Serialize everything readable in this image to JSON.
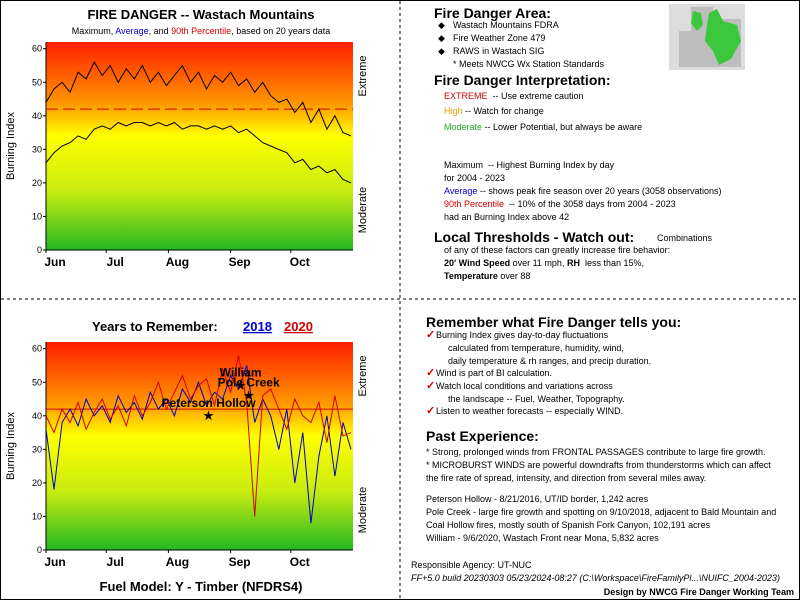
{
  "chart_data": [
    {
      "type": "line",
      "title": "FIRE DANGER -- Wastach Mountains",
      "subtitle": [
        {
          "text": "Maximum, ",
          "color": "#000000"
        },
        {
          "text": "Average",
          "color": "#0000cc"
        },
        {
          "text": ", and ",
          "color": "#000000"
        },
        {
          "text": "90th Percentile",
          "color": "#d00000"
        },
        {
          "text": ", based on 20 years data",
          "color": "#000000"
        }
      ],
      "ylabel": "Burning Index",
      "zone_labels": [
        "Extreme",
        "Moderate"
      ],
      "x": [
        0,
        4,
        8,
        12,
        16,
        20,
        24,
        28,
        32,
        36,
        40,
        44,
        48,
        52,
        56,
        60,
        64,
        68,
        72,
        76,
        80,
        84,
        88,
        92,
        96,
        100,
        104,
        108,
        112,
        116,
        120,
        124,
        128,
        132,
        136,
        140,
        144,
        148,
        152
      ],
      "series": [
        {
          "color": "#000000",
          "values": [
            44,
            48,
            50,
            47,
            53,
            51,
            56,
            52,
            55,
            50,
            54,
            51,
            55,
            50,
            53,
            49,
            52,
            55,
            50,
            53,
            48,
            52,
            50,
            53,
            49,
            51,
            47,
            50,
            46,
            44,
            45,
            41,
            44,
            38,
            42,
            36,
            40,
            35,
            34
          ]
        },
        {
          "color": "#000000",
          "values": [
            26,
            29,
            31,
            32,
            34,
            33,
            36,
            37,
            36,
            38,
            37,
            38,
            38,
            37,
            38,
            37,
            38,
            36,
            37,
            37,
            36,
            37,
            36,
            37,
            35,
            36,
            34,
            32,
            31,
            30,
            29,
            26,
            27,
            24,
            25,
            23,
            24,
            21,
            20
          ]
        }
      ],
      "reference": {
        "value": 42,
        "color": "#d00000",
        "dashed": true
      },
      "xlim": [
        0,
        153
      ],
      "xticks": [
        {
          "value": 0,
          "label": "Jun"
        },
        {
          "value": 30,
          "label": "Jul"
        },
        {
          "value": 61,
          "label": "Aug"
        },
        {
          "value": 92,
          "label": "Sep"
        },
        {
          "value": 122,
          "label": "Oct"
        }
      ],
      "ylim": [
        0,
        62
      ],
      "yticks": [
        0,
        10,
        20,
        30,
        40,
        50,
        60
      ]
    },
    {
      "type": "line",
      "title": "Years to Remember:",
      "ylabel": "Burning Index",
      "zone_labels": [
        "Extreme",
        "Moderate"
      ],
      "footer": "Fuel Model: Y - Timber (NFDRS4)",
      "x": [
        0,
        4,
        8,
        12,
        16,
        20,
        24,
        28,
        32,
        36,
        40,
        44,
        48,
        52,
        56,
        60,
        64,
        68,
        72,
        76,
        80,
        84,
        88,
        92,
        96,
        100,
        104,
        108,
        112,
        116,
        120,
        124,
        128,
        132,
        136,
        140,
        144,
        148,
        152
      ],
      "series": [
        {
          "name": "2018",
          "color": "#0000cc",
          "values": [
            36,
            18,
            38,
            42,
            37,
            45,
            40,
            43,
            38,
            46,
            41,
            44,
            39,
            47,
            42,
            45,
            40,
            48,
            44,
            50,
            43,
            47,
            45,
            52,
            48,
            55,
            38,
            45,
            40,
            30,
            42,
            20,
            35,
            8,
            28,
            40,
            22,
            38,
            30
          ]
        },
        {
          "name": "2020",
          "color": "#d00000",
          "values": [
            40,
            35,
            42,
            38,
            44,
            36,
            41,
            45,
            39,
            43,
            37,
            46,
            40,
            44,
            50,
            42,
            47,
            52,
            45,
            49,
            51,
            43,
            54,
            47,
            58,
            44,
            10,
            46,
            48,
            42,
            36,
            45,
            40,
            38,
            44,
            32,
            46,
            34,
            35
          ]
        }
      ],
      "reference": {
        "value": 42,
        "color": "#d00000",
        "dashed": false
      },
      "annotations": [
        {
          "text": "William",
          "x": 97,
          "y": 49
        },
        {
          "text": "Pole Creek",
          "x": 101,
          "y": 46
        },
        {
          "text": "Peterson Hollow",
          "x": 81,
          "y": 40
        }
      ],
      "xlim": [
        0,
        153
      ],
      "xticks": [
        {
          "value": 0,
          "label": "Jun"
        },
        {
          "value": 30,
          "label": "Jul"
        },
        {
          "value": 61,
          "label": "Aug"
        },
        {
          "value": 92,
          "label": "Sep"
        },
        {
          "value": 122,
          "label": "Oct"
        }
      ],
      "ylim": [
        0,
        62
      ],
      "yticks": [
        0,
        10,
        20,
        30,
        40,
        50,
        60
      ]
    }
  ],
  "area": {
    "title": "Fire Danger Area:",
    "items": [
      "Wastach Mountains FDRA",
      "Fire Weather Zone 479",
      "RAWS in Wastach SIG"
    ],
    "note": "* Meets NWCG Wx Station Standards"
  },
  "interpretation": {
    "title": "Fire Danger Interpretation:",
    "levels": [
      {
        "name": "EXTREME",
        "text": "  -- Use extreme caution"
      },
      {
        "name": "High",
        "text": " -- Watch for change"
      },
      {
        "name": "Moderate",
        "text": " -- Lower Potential, but always be aware"
      }
    ]
  },
  "definitions": {
    "maximum": {
      "name": "Maximum",
      "text": "  -- Highest Burning Index by day"
    },
    "years": "for 2004 - 2023",
    "average": {
      "name": "Average",
      "text": " -- shows peak fire season over 20 years (3058 observations)"
    },
    "percentile": {
      "name": "90th Percentile",
      "text": "  -- 10% of the 3058 days from 2004 - 2023"
    },
    "above": "had an Burning Index above 42"
  },
  "thresholds": {
    "title": "Local Thresholds - Watch out:",
    "intro": "Combinations",
    "text": "of any of these factors can greatly increase fire behavior:",
    "wind": "20' Wind Speed",
    "wind_text": " over 11 mph, ",
    "rh": "RH",
    "rh_text": "  less than 15%,",
    "temp": "Temperature",
    "temp_text": " over 88"
  },
  "remember": {
    "title": "Remember what Fire Danger tells you:",
    "items": [
      [
        "Burning Index gives day-to-day fluctuations",
        "calculated from temperature, humidity, wind,",
        "daily temperature & rh ranges, and precip duration."
      ],
      [
        "Wind is part of BI calculation."
      ],
      [
        "Watch local conditions and variations across",
        "the landscape -- Fuel, Weather, Topography."
      ],
      [
        "Listen to weather forecasts -- especially WIND."
      ]
    ]
  },
  "experience": {
    "title": "Past Experience:",
    "notes": [
      "* Strong, prolonged winds from FRONTAL PASSAGES contribute to large fire growth.",
      "* MICROBURST WINDS are powerful downdrafts from thunderstorms which can affect",
      "the fire rate of spread, intensity, and direction from several miles away."
    ],
    "fires": [
      "Peterson Hollow - 8/21/2016, UT/ID border, 1,242 acres",
      "Pole Creek - large fire growth and spotting on 9/10/2018, adjacent to Bald Mountain and",
      "Coal Hollow fires, mostly south of Spanish Fork Canyon, 102,191 acres",
      "William - 9/6/2020, Wastach Front near Mona, 5,832 acres"
    ]
  },
  "footer": {
    "agency": "Responsible Agency: UT-NUC",
    "build": "FF+5.0 build 20230303 05/23/2024-08:27 (C:\\Workspace\\FireFamilyPl...\\NUIFC_2004-2023)",
    "design": "Design by NWCG Fire Danger Working Team"
  }
}
